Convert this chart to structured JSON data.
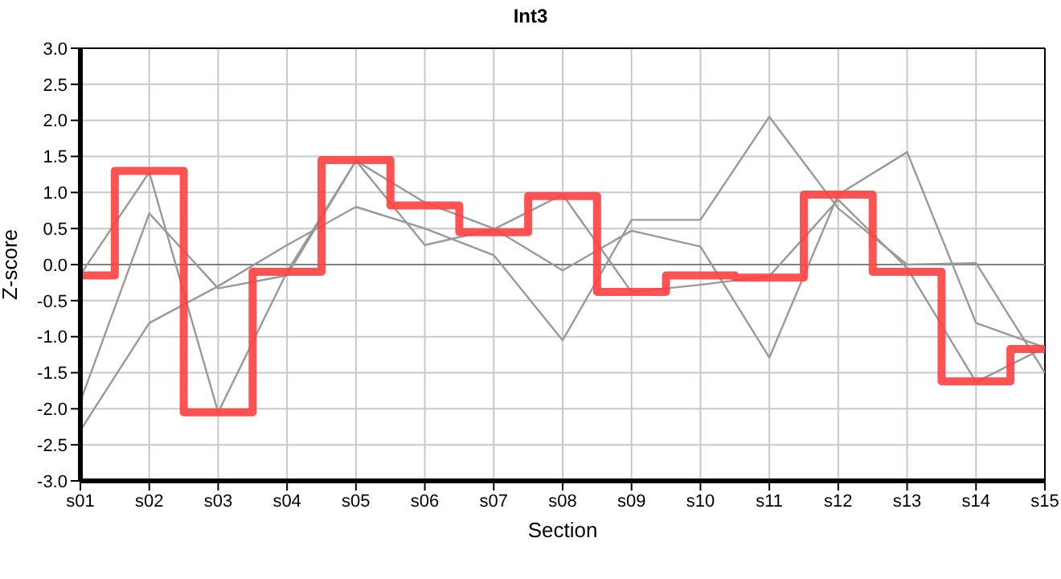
{
  "chart_data": {
    "type": "line",
    "title": "Int3",
    "xlabel": "Section",
    "ylabel": "Z-score",
    "categories": [
      "s01",
      "s02",
      "s03",
      "s04",
      "s05",
      "s06",
      "s07",
      "s08",
      "s09",
      "s10",
      "s11",
      "s12",
      "s13",
      "s14",
      "s15"
    ],
    "series": [
      {
        "color": "#999999",
        "values": [
          -0.14,
          1.28,
          -2.05,
          -0.1,
          1.44,
          0.86,
          0.5,
          -0.08,
          0.47,
          0.25,
          -1.29,
          0.97,
          1.56,
          -0.81,
          -1.15
        ]
      },
      {
        "color": "#999999",
        "values": [
          -1.9,
          0.71,
          -0.33,
          -0.15,
          1.44,
          0.27,
          0.49,
          0.97,
          -0.38,
          -0.28,
          -0.16,
          0.9,
          -0.05,
          -1.63,
          -1.15
        ]
      },
      {
        "color": "#999999",
        "values": [
          -2.3,
          -0.81,
          -0.3,
          0.27,
          0.8,
          0.5,
          0.13,
          -1.05,
          0.62,
          0.62,
          2.05,
          0.78,
          0.0,
          0.02,
          -1.5
        ]
      },
      {
        "type": "step",
        "color": "#ff4040",
        "values": [
          -0.15,
          1.3,
          -2.05,
          -0.1,
          1.45,
          0.82,
          0.45,
          0.95,
          -0.38,
          -0.15,
          -0.18,
          0.97,
          -0.1,
          -1.62,
          -1.17
        ]
      }
    ],
    "ylim": [
      -3,
      3
    ],
    "yticks": [
      {
        "value": -3,
        "label": "-3.0"
      },
      {
        "value": -2.5,
        "label": "-2.5"
      },
      {
        "value": -2,
        "label": "-2.0"
      },
      {
        "value": -1.5,
        "label": "-1.5"
      },
      {
        "value": -1,
        "label": "-1.0"
      },
      {
        "value": -0.5,
        "label": "-0.5"
      },
      {
        "value": 0,
        "label": "0.0"
      },
      {
        "value": 0.5,
        "label": "0.5"
      },
      {
        "value": 1,
        "label": "1.0"
      },
      {
        "value": 1.5,
        "label": "1.5"
      },
      {
        "value": 2,
        "label": "2.0"
      },
      {
        "value": 2.5,
        "label": "2.5"
      },
      {
        "value": 3,
        "label": "3.0"
      }
    ],
    "ref_lines": [
      {
        "axis": "y",
        "value": 0,
        "color": "#808080"
      }
    ],
    "grid": true,
    "legend": false,
    "marker": "none",
    "line_style": "solid"
  }
}
